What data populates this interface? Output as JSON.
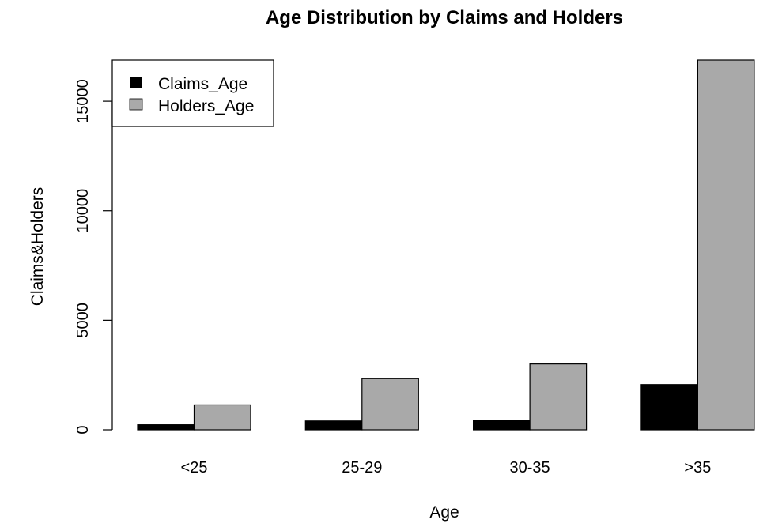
{
  "chart_data": {
    "type": "bar",
    "title": "Age Distribution by Claims and Holders",
    "xlabel": "Age",
    "ylabel": "Claims&Holders",
    "categories": [
      "<25",
      "25-29",
      "30-35",
      ">35"
    ],
    "series": [
      {
        "name": "Claims_Age",
        "values": [
          229,
          404,
          434,
          2065
        ],
        "color": "#000000"
      },
      {
        "name": "Holders_Age",
        "values": [
          1138,
          2336,
          3007,
          16879
        ],
        "color": "#a9a9a9"
      }
    ],
    "y_ticks": [
      "0",
      "5000",
      "10000",
      "15000"
    ],
    "y_tick_values": [
      0,
      5000,
      10000,
      15000
    ],
    "ylim": [
      0,
      16879
    ],
    "legend_position": "top-left",
    "grid": false
  }
}
